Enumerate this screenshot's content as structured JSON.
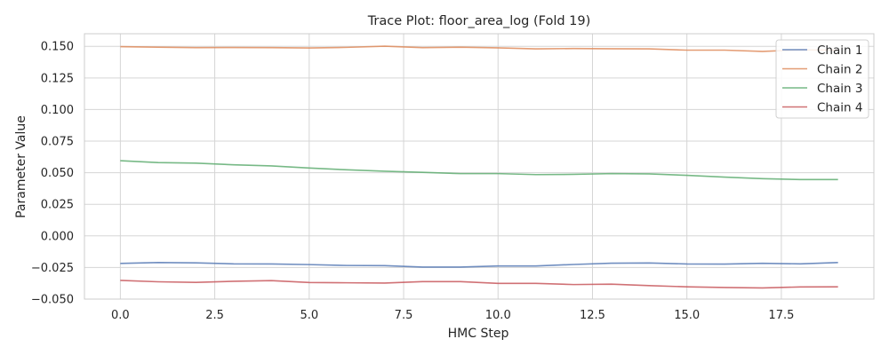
{
  "chart_data": {
    "type": "line",
    "title": "Trace Plot: floor_area_log (Fold 19)",
    "xlabel": "HMC Step",
    "ylabel": "Parameter Value",
    "xlim": [
      -0.95,
      19.95
    ],
    "ylim": [
      -0.05,
      0.16
    ],
    "xticks": [
      0.0,
      2.5,
      5.0,
      7.5,
      10.0,
      12.5,
      15.0,
      17.5
    ],
    "xtick_labels": [
      "0.0",
      "2.5",
      "5.0",
      "7.5",
      "10.0",
      "12.5",
      "15.0",
      "17.5"
    ],
    "yticks": [
      -0.05,
      -0.025,
      0.0,
      0.025,
      0.05,
      0.075,
      0.1,
      0.125,
      0.15
    ],
    "ytick_labels": [
      "−0.050",
      "−0.025",
      "0.000",
      "0.025",
      "0.050",
      "0.075",
      "0.100",
      "0.125",
      "0.150"
    ],
    "grid": true,
    "legend_position": "top-right",
    "x": [
      0,
      1,
      2,
      3,
      4,
      5,
      6,
      7,
      8,
      9,
      10,
      11,
      12,
      13,
      14,
      15,
      16,
      17,
      18,
      19
    ],
    "series": [
      {
        "name": "Chain 1",
        "color": "#4c72b0",
        "values": [
          -0.0218,
          -0.0211,
          -0.0213,
          -0.0221,
          -0.0222,
          -0.0227,
          -0.0234,
          -0.0235,
          -0.0247,
          -0.0247,
          -0.0238,
          -0.0238,
          -0.0226,
          -0.0216,
          -0.0214,
          -0.0222,
          -0.0223,
          -0.0217,
          -0.0221,
          -0.0211
        ]
      },
      {
        "name": "Chain 2",
        "color": "#dd8452",
        "values": [
          0.1498,
          0.1493,
          0.149,
          0.1491,
          0.149,
          0.1487,
          0.1492,
          0.1501,
          0.149,
          0.1493,
          0.1488,
          0.148,
          0.1483,
          0.1481,
          0.148,
          0.147,
          0.147,
          0.146,
          0.1472,
          0.147
        ]
      },
      {
        "name": "Chain 3",
        "color": "#55a868",
        "values": [
          0.0595,
          0.058,
          0.0576,
          0.0563,
          0.0554,
          0.0537,
          0.0523,
          0.0512,
          0.0503,
          0.0493,
          0.0493,
          0.0485,
          0.0487,
          0.0493,
          0.0491,
          0.0479,
          0.0465,
          0.0453,
          0.0446,
          0.0446
        ]
      },
      {
        "name": "Chain 4",
        "color": "#c44e52",
        "values": [
          -0.0352,
          -0.0363,
          -0.0368,
          -0.0359,
          -0.0354,
          -0.0369,
          -0.0371,
          -0.0373,
          -0.0362,
          -0.0362,
          -0.0376,
          -0.0376,
          -0.0385,
          -0.0382,
          -0.0393,
          -0.0403,
          -0.0408,
          -0.0412,
          -0.0404,
          -0.0403
        ]
      }
    ]
  }
}
